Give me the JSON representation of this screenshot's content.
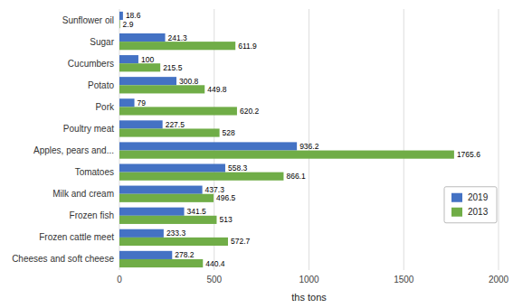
{
  "chart_data": {
    "type": "bar",
    "orientation": "horizontal",
    "categories": [
      "Cheeses and soft cheese",
      "Frozen cattle meet",
      "Frozen fish",
      "Milk and cream",
      "Tomatoes",
      "Apples, pears and...",
      "Poultry meat",
      "Pork",
      "Potato",
      "Cucumbers",
      "Sugar",
      "Sunflower oil"
    ],
    "series": [
      {
        "name": "2019",
        "color": "#4472C4",
        "values": [
          278.2,
          233.3,
          341.5,
          437.3,
          558.3,
          936.2,
          227.5,
          79,
          300.8,
          100,
          241.3,
          18.6
        ]
      },
      {
        "name": "2013",
        "color": "#70AD47",
        "values": [
          440.4,
          572.7,
          513,
          496.5,
          866.1,
          1765.6,
          528,
          620.2,
          449.8,
          215.5,
          611.9,
          2.9
        ]
      }
    ],
    "x_label": "ths tons",
    "xlim": [
      0,
      2000
    ],
    "xticks": [
      0,
      500,
      1000,
      1500,
      2000
    ],
    "grid": true,
    "legend": "lower right",
    "data_labels": true
  }
}
